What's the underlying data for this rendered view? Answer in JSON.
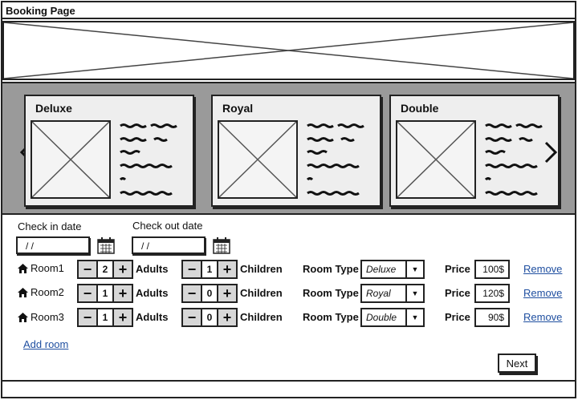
{
  "window": {
    "title": "Booking Page"
  },
  "rooms_carousel": [
    {
      "name": "Deluxe"
    },
    {
      "name": "Royal"
    },
    {
      "name": "Double"
    }
  ],
  "dates": {
    "check_in_label": "Check in date",
    "check_in_value": " / /",
    "check_out_label": "Check out date",
    "check_out_value": " / /"
  },
  "bookings": [
    {
      "room": "Room1",
      "adults": "2",
      "children": "1",
      "room_type": "Deluxe",
      "price": "100$"
    },
    {
      "room": "Room2",
      "adults": "1",
      "children": "0",
      "room_type": "Royal",
      "price": "120$"
    },
    {
      "room": "Room3",
      "adults": "1",
      "children": "0",
      "room_type": "Double",
      "price": "90$"
    }
  ],
  "labels": {
    "adults": "Adults",
    "children": "Children",
    "room_type": "Room Type",
    "price": "Price",
    "remove": "Remove",
    "minus": "−",
    "plus": "+"
  },
  "actions": {
    "add_room": "Add room",
    "next": "Next"
  },
  "icons": {
    "left_arrow": "chevron-left-icon",
    "right_arrow": "chevron-right-icon",
    "calendar": "calendar-icon",
    "home": "home-icon",
    "dropdown": "caret-down-icon"
  }
}
